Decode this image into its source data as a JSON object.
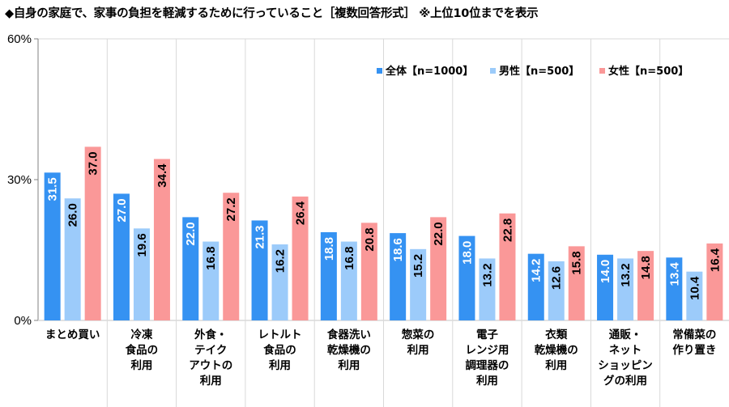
{
  "chart_data": {
    "type": "bar",
    "title": "◆自身の家庭で、家事の負担を軽減するために行っていること［複数回答形式］ ※上位10位までを表示",
    "xlabel": "",
    "ylabel": "",
    "ylim": [
      0,
      60
    ],
    "yticks": [
      0,
      30,
      60
    ],
    "ytick_labels": [
      "0%",
      "30%",
      "60%"
    ],
    "grid": false,
    "legend_position": "top-right",
    "categories": [
      [
        "まとめ買い"
      ],
      [
        "冷凍",
        "食品の",
        "利用"
      ],
      [
        "外食・",
        "テイク",
        "アウトの",
        "利用"
      ],
      [
        "レトルト",
        "食品の",
        "利用"
      ],
      [
        "食器洗い",
        "乾燥機の",
        "利用"
      ],
      [
        "惣菜の",
        "利用"
      ],
      [
        "電子",
        "レンジ用",
        "調理器の",
        "利用"
      ],
      [
        "衣類",
        "乾燥機の",
        "利用"
      ],
      [
        "通販・",
        "ネット",
        "ショッピン",
        "グの利用"
      ],
      [
        "常備菜の",
        "作り置き"
      ]
    ],
    "series": [
      {
        "name": "全体【n=1000】",
        "color": "#3592f2",
        "label_color": "#ffffff",
        "values": [
          31.5,
          27.0,
          22.0,
          21.3,
          18.8,
          18.6,
          18.0,
          14.2,
          14.0,
          13.4
        ]
      },
      {
        "name": "男性【n=500】",
        "color": "#9ccbfa",
        "label_color": "#000000",
        "values": [
          26.0,
          19.6,
          16.8,
          16.2,
          16.8,
          15.2,
          13.2,
          12.6,
          13.2,
          10.4
        ]
      },
      {
        "name": "女性【n=500】",
        "color": "#fa9898",
        "label_color": "#000000",
        "values": [
          37.0,
          34.4,
          27.2,
          26.4,
          20.8,
          22.0,
          22.8,
          15.8,
          14.8,
          16.4
        ]
      }
    ]
  }
}
